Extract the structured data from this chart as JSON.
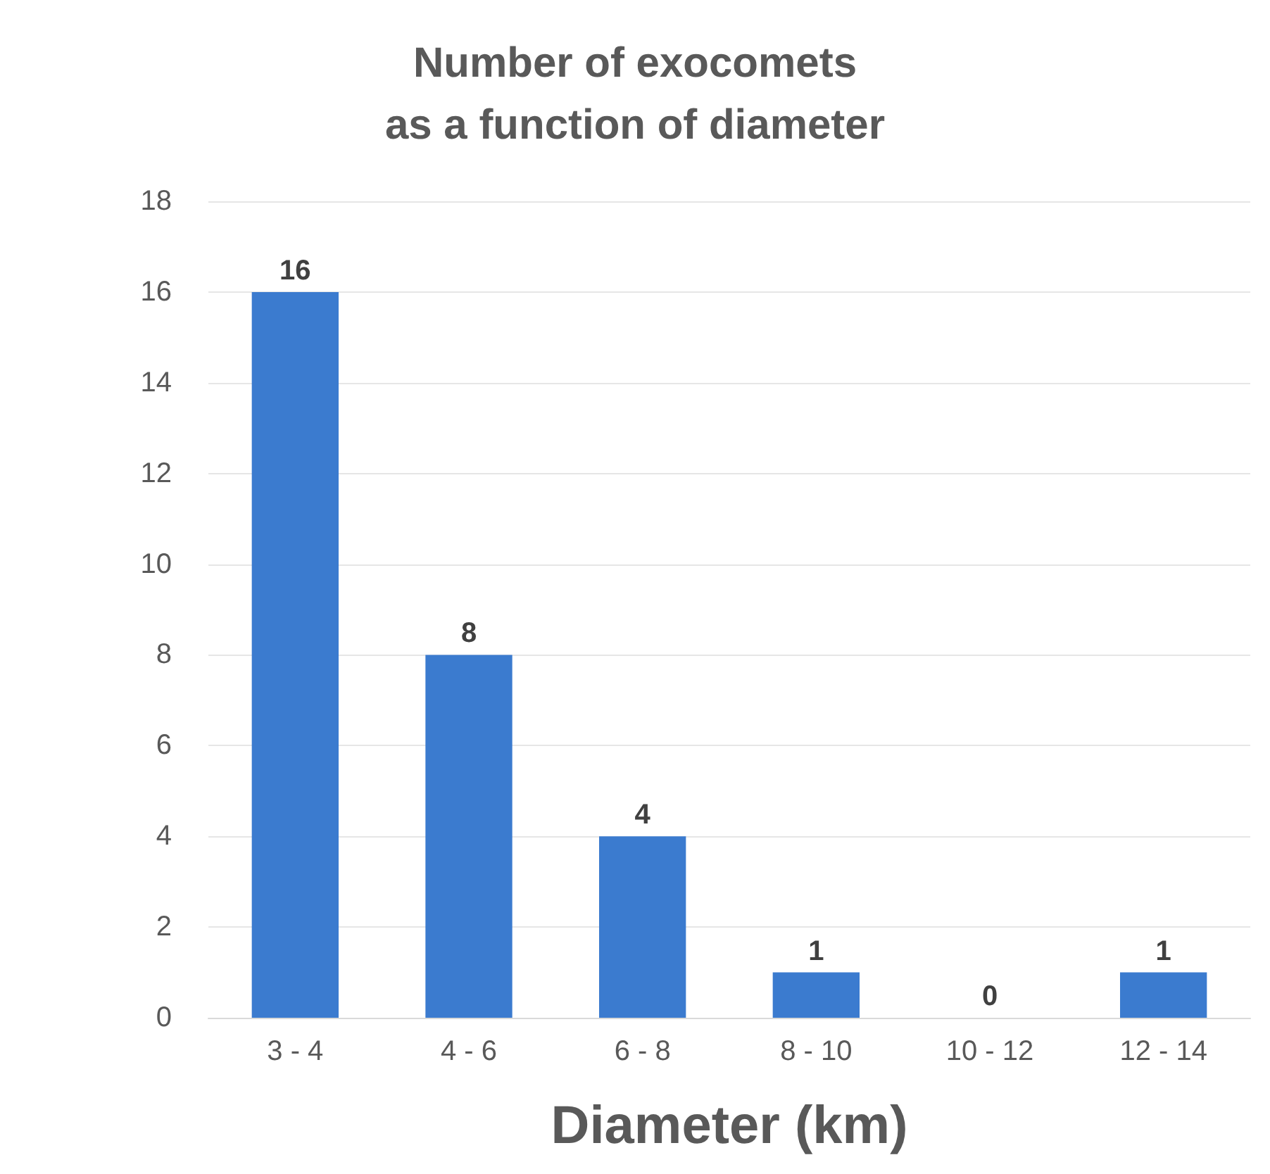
{
  "chart_data": {
    "type": "bar",
    "title": "Number of exocomets\nas a function of diameter",
    "xlabel": "Diameter (km)",
    "categories": [
      "3 - 4",
      "4 - 6",
      "6 - 8",
      "8 - 10",
      "10 - 12",
      "12 - 14"
    ],
    "values": [
      16,
      8,
      4,
      1,
      0,
      1
    ],
    "color": "#3b7bcf",
    "ylim": [
      0,
      18
    ],
    "yticks": [
      0,
      2,
      4,
      6,
      8,
      10,
      12,
      14,
      16,
      18
    ],
    "grid": "y",
    "data_labels": true
  }
}
